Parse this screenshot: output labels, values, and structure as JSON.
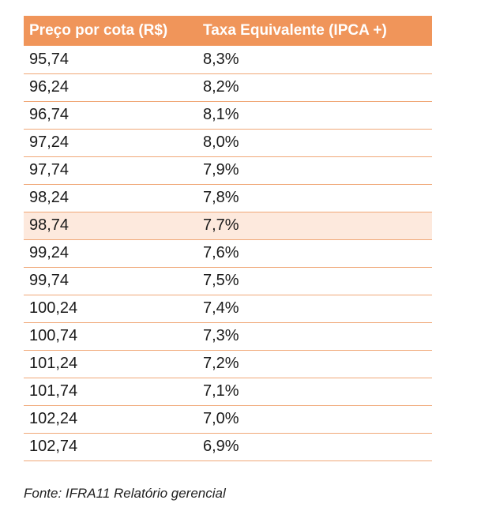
{
  "table": {
    "headers": [
      "Preço por cota (R$)",
      "Taxa Equivalente (IPCA +)"
    ],
    "header_color": "#f0955a",
    "highlight_color": "#fde9dd",
    "highlighted_row_index": 6,
    "rows": [
      [
        "95,74",
        "8,3%"
      ],
      [
        "96,24",
        "8,2%"
      ],
      [
        "96,74",
        "8,1%"
      ],
      [
        "97,24",
        "8,0%"
      ],
      [
        "97,74",
        "7,9%"
      ],
      [
        "98,24",
        "7,8%"
      ],
      [
        "98,74",
        "7,7%"
      ],
      [
        "99,24",
        "7,6%"
      ],
      [
        "99,74",
        "7,5%"
      ],
      [
        "100,24",
        "7,4%"
      ],
      [
        "100,74",
        "7,3%"
      ],
      [
        "101,24",
        "7,2%"
      ],
      [
        "101,74",
        "7,1%"
      ],
      [
        "102,24",
        "7,0%"
      ],
      [
        "102,74",
        "6,9%"
      ]
    ]
  },
  "source": "Fonte: IFRA11 Relatório gerencial"
}
